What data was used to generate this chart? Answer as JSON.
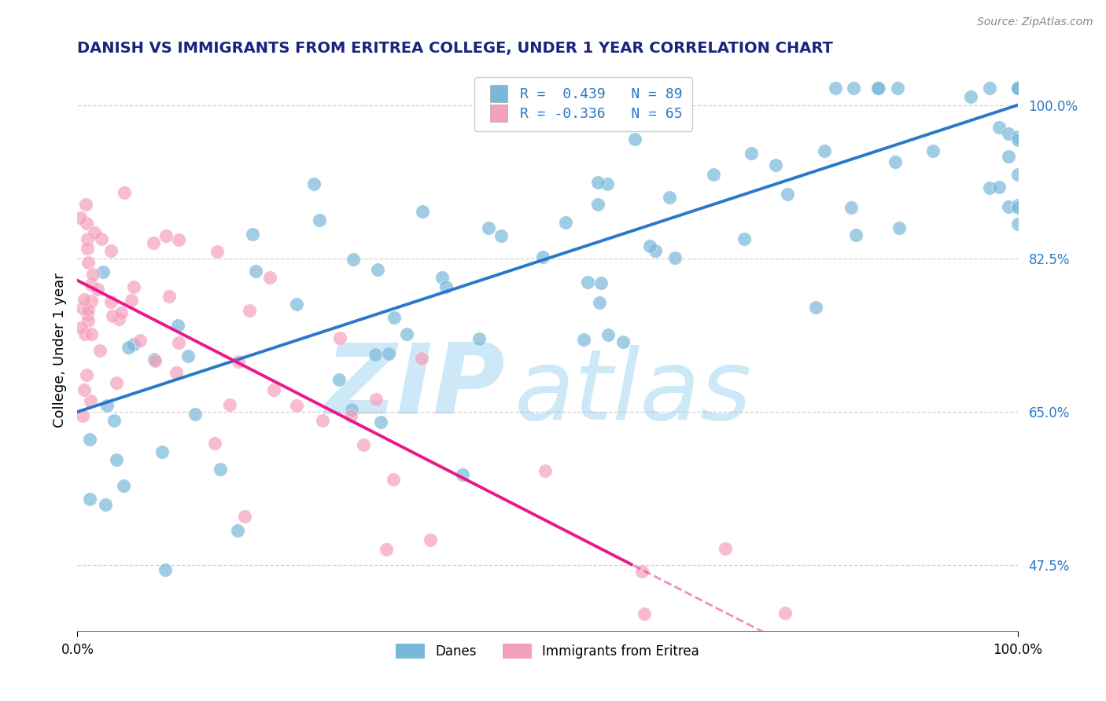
{
  "title": "DANISH VS IMMIGRANTS FROM ERITREA COLLEGE, UNDER 1 YEAR CORRELATION CHART",
  "source": "Source: ZipAtlas.com",
  "ylabel": "College, Under 1 year",
  "yticks": [
    47.5,
    65.0,
    82.5,
    100.0
  ],
  "ytick_labels": [
    "47.5%",
    "65.0%",
    "82.5%",
    "100.0%"
  ],
  "xlim": [
    0.0,
    100.0
  ],
  "ylim": [
    40.0,
    104.0
  ],
  "legend_blue_r": "R =  0.439",
  "legend_blue_n": "N = 89",
  "legend_pink_r": "R = -0.336",
  "legend_pink_n": "N = 65",
  "blue_color": "#7ab8d9",
  "pink_color": "#f4a0bc",
  "blue_line_color": "#2979c8",
  "pink_line_color": "#e8198a",
  "watermark_color": "#cde8f6",
  "title_color": "#1a237e",
  "blue_line_start_y": 65.0,
  "blue_line_end_y": 100.0,
  "pink_line_start_y": 80.0,
  "pink_line_slope": -0.55,
  "pink_dash_threshold": 47.5
}
